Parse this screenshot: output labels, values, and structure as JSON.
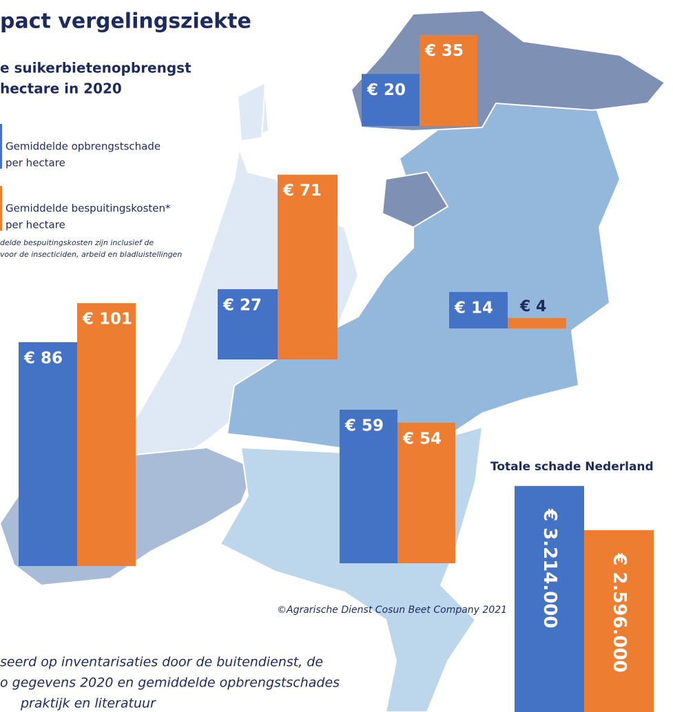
{
  "header": {
    "title": "pact vergelingsziekte",
    "subtitle": [
      "e suikerbietenopbrengst",
      "hectare in 2020"
    ],
    "legend": [
      {
        "lines": [
          "Gemiddelde opbrengstschade",
          "per hectare"
        ],
        "color": "#4472c4"
      },
      {
        "lines": [
          "Gemiddelde bespuitingskosten*",
          "per hectare"
        ],
        "color": "#ed7d31"
      }
    ],
    "footnote": [
      "delde bespuitingskosten zijn inclusief de",
      "voor de insecticiden, arbeid en bladluistellingen"
    ],
    "credit": "©Agrarische Dienst Cosun Beet Company 2021",
    "note": [
      "seerd op inventarisaties door de buitendienst, de",
      "o gegevens 2020 en gemiddelde opbrengstschades",
      "praktijk en literatuur"
    ]
  },
  "chart_data": [
    {
      "type": "bar",
      "values": [
        20,
        35
      ],
      "value_labels": [
        "€ 20",
        "€ 35"
      ],
      "colors": [
        "#4472c4",
        "#ed7d31"
      ]
    },
    {
      "type": "bar",
      "values": [
        27,
        71
      ],
      "value_labels": [
        "€ 27",
        "€ 71"
      ],
      "colors": [
        "#4472c4",
        "#ed7d31"
      ]
    },
    {
      "type": "bar",
      "values": [
        86,
        101
      ],
      "value_labels": [
        "€ 86",
        "€ 101"
      ],
      "colors": [
        "#4472c4",
        "#ed7d31"
      ]
    },
    {
      "type": "bar",
      "values": [
        14,
        4
      ],
      "value_labels": [
        "€ 14",
        "€ 4"
      ],
      "colors": [
        "#4472c4",
        "#ed7d31"
      ]
    },
    {
      "type": "bar",
      "values": [
        59,
        54
      ],
      "value_labels": [
        "€ 59",
        "€ 54"
      ],
      "colors": [
        "#4472c4",
        "#ed7d31"
      ]
    },
    {
      "type": "bar",
      "title": "Totale schade Nederland",
      "values": [
        3214000,
        2596000
      ],
      "value_labels": [
        "€ 3.214.000",
        "€ 2.596.000"
      ],
      "colors": [
        "#4472c4",
        "#ed7d31"
      ]
    }
  ]
}
